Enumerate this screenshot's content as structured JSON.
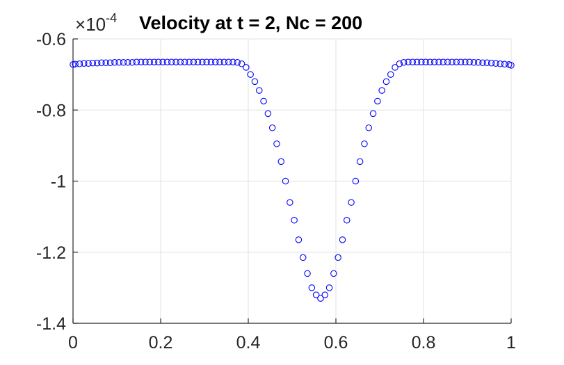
{
  "chart_data": {
    "type": "scatter",
    "title": "Velocity at t = 2, Nc = 200",
    "xlabel": "",
    "ylabel": "",
    "y_multiplier": "10",
    "y_exponent": "-4",
    "y_multiplier_sign": "×",
    "xlim": [
      0,
      1
    ],
    "ylim": [
      -1.4,
      -0.6
    ],
    "x_ticks": [
      0,
      0.2,
      0.4,
      0.6,
      0.8,
      1
    ],
    "x_tick_labels": [
      "0",
      "0.2",
      "0.4",
      "0.6",
      "0.8",
      "1"
    ],
    "y_ticks": [
      -1.4,
      -1.2,
      -1,
      -0.8,
      -0.6
    ],
    "y_tick_labels": [
      "-1.4",
      "-1.2",
      "-1",
      "-0.8",
      "-0.6"
    ],
    "grid": true,
    "marker": "circle-open",
    "colors": {
      "marker": "#0000ff",
      "axis": "#262626",
      "grid": "#e0e0e0"
    },
    "series": [
      {
        "x": [
          0.0,
          0.005,
          0.015,
          0.025,
          0.035,
          0.045,
          0.055,
          0.065,
          0.075,
          0.085,
          0.095,
          0.105,
          0.115,
          0.125,
          0.135,
          0.145,
          0.155,
          0.165,
          0.175,
          0.185,
          0.195,
          0.205,
          0.215,
          0.225,
          0.235,
          0.245,
          0.255,
          0.265,
          0.275,
          0.285,
          0.295,
          0.305,
          0.315,
          0.325,
          0.335,
          0.345,
          0.355,
          0.365,
          0.375,
          0.385,
          0.395,
          0.405,
          0.415,
          0.425,
          0.435,
          0.445,
          0.455,
          0.465,
          0.475,
          0.485,
          0.495,
          0.505,
          0.515,
          0.525,
          0.535,
          0.545,
          0.555,
          0.565,
          0.575,
          0.585,
          0.595,
          0.605,
          0.615,
          0.625,
          0.635,
          0.645,
          0.655,
          0.665,
          0.675,
          0.685,
          0.695,
          0.705,
          0.715,
          0.725,
          0.735,
          0.745,
          0.755,
          0.765,
          0.775,
          0.785,
          0.795,
          0.805,
          0.815,
          0.825,
          0.835,
          0.845,
          0.855,
          0.865,
          0.875,
          0.885,
          0.895,
          0.905,
          0.915,
          0.925,
          0.935,
          0.945,
          0.955,
          0.965,
          0.975,
          0.985,
          0.995,
          1.0
        ],
        "y": [
          -0.672,
          -0.671,
          -0.67,
          -0.669,
          -0.669,
          -0.668,
          -0.668,
          -0.667,
          -0.667,
          -0.667,
          -0.666,
          -0.666,
          -0.666,
          -0.666,
          -0.666,
          -0.665,
          -0.665,
          -0.665,
          -0.665,
          -0.665,
          -0.665,
          -0.665,
          -0.665,
          -0.665,
          -0.665,
          -0.665,
          -0.665,
          -0.665,
          -0.665,
          -0.665,
          -0.665,
          -0.665,
          -0.665,
          -0.665,
          -0.665,
          -0.665,
          -0.665,
          -0.665,
          -0.666,
          -0.67,
          -0.68,
          -0.7,
          -0.72,
          -0.745,
          -0.775,
          -0.81,
          -0.85,
          -0.895,
          -0.945,
          -1.0,
          -1.06,
          -1.11,
          -1.165,
          -1.215,
          -1.26,
          -1.3,
          -1.32,
          -1.33,
          -1.32,
          -1.3,
          -1.26,
          -1.215,
          -1.165,
          -1.11,
          -1.06,
          -1.0,
          -0.945,
          -0.895,
          -0.85,
          -0.81,
          -0.775,
          -0.745,
          -0.72,
          -0.7,
          -0.68,
          -0.67,
          -0.666,
          -0.665,
          -0.665,
          -0.665,
          -0.665,
          -0.665,
          -0.665,
          -0.665,
          -0.665,
          -0.665,
          -0.665,
          -0.665,
          -0.665,
          -0.665,
          -0.665,
          -0.665,
          -0.666,
          -0.666,
          -0.667,
          -0.667,
          -0.668,
          -0.669,
          -0.67,
          -0.671,
          -0.672,
          -0.674
        ]
      }
    ]
  }
}
